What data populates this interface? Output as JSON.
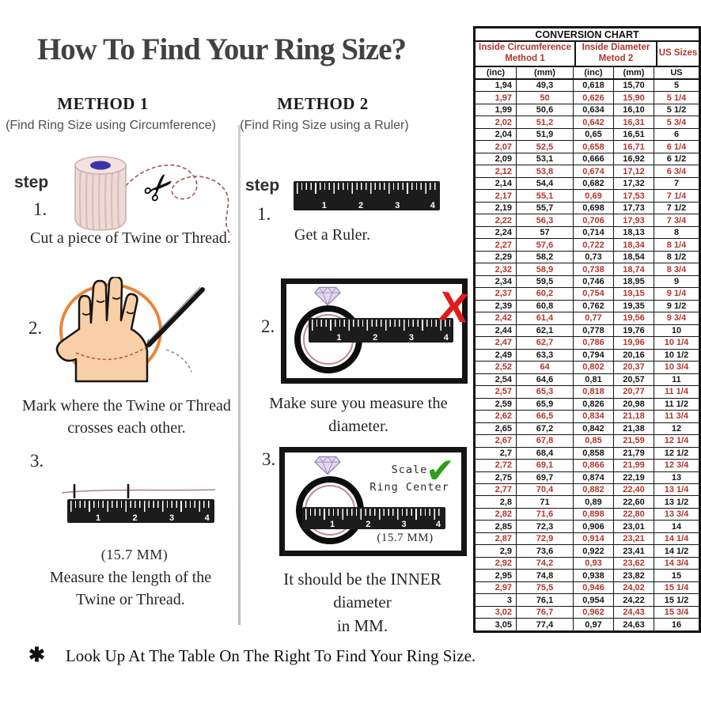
{
  "title": "How To Find Your Ring Size?",
  "method1": {
    "heading": "METHOD 1",
    "subheading": "(Find Ring Size using Circumference)",
    "step_label": "step",
    "steps": [
      {
        "num": "1.",
        "lines": [
          "Cut a piece of Twine or Thread."
        ]
      },
      {
        "num": "2.",
        "lines": [
          "Mark where the Twine or Thread",
          "crosses each other."
        ]
      },
      {
        "num": "3.",
        "measurement": "(15.7 MM)",
        "lines": [
          "Measure the length of the",
          "Twine or Thread."
        ]
      }
    ]
  },
  "method2": {
    "heading": "METHOD 2",
    "subheading": "(Find Ring Size using a Ruler)",
    "step_label": "step",
    "steps": [
      {
        "num": "1.",
        "lines": [
          "Get a Ruler."
        ]
      },
      {
        "num": "2.",
        "lines": [
          "Make sure you measure the diameter."
        ]
      },
      {
        "num": "3.",
        "measurement": "(15.7 MM)",
        "scale_lines": [
          "Scale",
          "Ring Center"
        ],
        "lines": [
          "It should be the INNER diameter",
          "in MM."
        ]
      }
    ]
  },
  "ruler_numbers": [
    "1",
    "2",
    "3",
    "4"
  ],
  "footer": {
    "asterisk": "✱",
    "text": "Look Up At The Table On The Right To Find Your Ring Size."
  },
  "conversion_chart": {
    "title": "CONVERSION CHART",
    "group_headers": [
      {
        "line1": "Inside Circumference",
        "line2": "Method 1"
      },
      {
        "line1": "Inside Diameter",
        "line2": "Metod 2"
      },
      {
        "line1": "US Sizes"
      }
    ],
    "sub_headers": [
      "(inc)",
      "(mm)",
      "(inc)",
      "(mm)",
      "US"
    ],
    "colors": {
      "red": "#b5342c",
      "black": "#161616"
    },
    "rows": [
      [
        "1,94",
        "49,3",
        "0,618",
        "15,70",
        "5"
      ],
      [
        "1,97",
        "50",
        "0,626",
        "15,90",
        "5 1/4"
      ],
      [
        "1,99",
        "50,6",
        "0,634",
        "16,10",
        "5 1/2"
      ],
      [
        "2,02",
        "51,2",
        "0,642",
        "16,31",
        "5 3/4"
      ],
      [
        "2,04",
        "51,9",
        "0,65",
        "16,51",
        "6"
      ],
      [
        "2,07",
        "52,5",
        "0,658",
        "16,71",
        "6 1/4"
      ],
      [
        "2,09",
        "53,1",
        "0,666",
        "16,92",
        "6 1/2"
      ],
      [
        "2,12",
        "53,8",
        "0,674",
        "17,12",
        "6 3/4"
      ],
      [
        "2,14",
        "54,4",
        "0,682",
        "17,32",
        "7"
      ],
      [
        "2,17",
        "55,1",
        "0,69",
        "17,53",
        "7 1/4"
      ],
      [
        "2,19",
        "55,7",
        "0,698",
        "17,73",
        "7 1/2"
      ],
      [
        "2,22",
        "56,3",
        "0,706",
        "17,93",
        "7 3/4"
      ],
      [
        "2,24",
        "57",
        "0,714",
        "18,13",
        "8"
      ],
      [
        "2,27",
        "57,6",
        "0,722",
        "18,34",
        "8 1/4"
      ],
      [
        "2,29",
        "58,2",
        "0,73",
        "18,54",
        "8 1/2"
      ],
      [
        "2,32",
        "58,9",
        "0,738",
        "18,74",
        "8 3/4"
      ],
      [
        "2,34",
        "59,5",
        "0,746",
        "18,95",
        "9"
      ],
      [
        "2,37",
        "60,2",
        "0,754",
        "19,15",
        "9 1/4"
      ],
      [
        "2,39",
        "60,8",
        "0,762",
        "19,35",
        "9 1/2"
      ],
      [
        "2,42",
        "61,4",
        "0,77",
        "19,56",
        "9 3/4"
      ],
      [
        "2,44",
        "62,1",
        "0,778",
        "19,76",
        "10"
      ],
      [
        "2,47",
        "62,7",
        "0,786",
        "19,96",
        "10 1/4"
      ],
      [
        "2,49",
        "63,3",
        "0,794",
        "20,16",
        "10 1/2"
      ],
      [
        "2,52",
        "64",
        "0,802",
        "20,37",
        "10 3/4"
      ],
      [
        "2,54",
        "64,6",
        "0,81",
        "20,57",
        "11"
      ],
      [
        "2,57",
        "65,3",
        "0,818",
        "20,77",
        "11 1/4"
      ],
      [
        "2,59",
        "65,9",
        "0,826",
        "20,98",
        "11 1/2"
      ],
      [
        "2,62",
        "66,5",
        "0,834",
        "21,18",
        "11 3/4"
      ],
      [
        "2,65",
        "67,2",
        "0,842",
        "21,38",
        "12"
      ],
      [
        "2,67",
        "67,8",
        "0,85",
        "21,59",
        "12 1/4"
      ],
      [
        "2,7",
        "68,4",
        "0,858",
        "21,79",
        "12 1/2"
      ],
      [
        "2,72",
        "69,1",
        "0,866",
        "21,99",
        "12 3/4"
      ],
      [
        "2,75",
        "69,7",
        "0,874",
        "22,19",
        "13"
      ],
      [
        "2,77",
        "70,4",
        "0,882",
        "22,40",
        "13 1/4"
      ],
      [
        "2,8",
        "71",
        "0,89",
        "22,60",
        "13 1/2"
      ],
      [
        "2,82",
        "71,6",
        "0,898",
        "22,80",
        "13 3/4"
      ],
      [
        "2,85",
        "72,3",
        "0,906",
        "23,01",
        "14"
      ],
      [
        "2,87",
        "72,9",
        "0,914",
        "23,21",
        "14 1/4"
      ],
      [
        "2,9",
        "73,6",
        "0,922",
        "23,41",
        "14 1/2"
      ],
      [
        "2,92",
        "74,2",
        "0,93",
        "23,62",
        "14 3/4"
      ],
      [
        "2,95",
        "74,8",
        "0,938",
        "23,82",
        "15"
      ],
      [
        "2,97",
        "75,5",
        "0,946",
        "24,02",
        "15 1/4"
      ],
      [
        "3",
        "76,1",
        "0,954",
        "24,22",
        "15 1/2"
      ],
      [
        "3,02",
        "76,7",
        "0,962",
        "24,43",
        "15 3/4"
      ],
      [
        "3,05",
        "77,4",
        "0,97",
        "24,63",
        "16"
      ]
    ]
  }
}
